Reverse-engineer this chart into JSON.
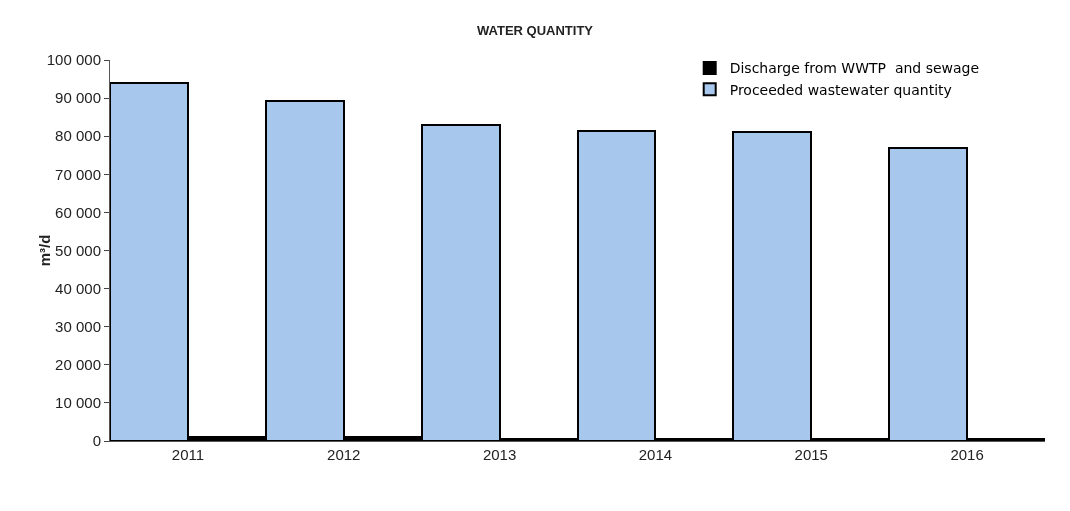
{
  "chart_data": {
    "type": "bar",
    "title": "WATER QUANTITY",
    "ylabel": "m³/d",
    "categories": [
      "2011",
      "2012",
      "2013",
      "2014",
      "2015",
      "2016"
    ],
    "series": [
      {
        "name": "Proceeded wastewater quantity",
        "color": "#a7c8ec",
        "values": [
          94000,
          89200,
          83000,
          81400,
          81100,
          76800
        ]
      },
      {
        "name": "Discharge from WWTP  and sewage",
        "color": "#000000",
        "values": [
          1000,
          1000,
          500,
          500,
          500,
          500
        ]
      }
    ],
    "ylim": [
      0,
      100000
    ],
    "yticks": [
      0,
      {
        "value": 10000,
        "label": "10 000"
      },
      {
        "value": 20000,
        "label": "20 000"
      },
      {
        "value": 30000,
        "label": "30 000"
      },
      {
        "value": 40000,
        "label": "40 000"
      },
      {
        "value": 50000,
        "label": "50 000"
      },
      {
        "value": 60000,
        "label": "60 000"
      },
      {
        "value": 70000,
        "label": "70 000"
      },
      {
        "value": 80000,
        "label": "80 000"
      },
      {
        "value": 90000,
        "label": "90 000"
      },
      {
        "value": 100000,
        "label": "100 000"
      }
    ],
    "grid": false,
    "legend": "top right"
  }
}
